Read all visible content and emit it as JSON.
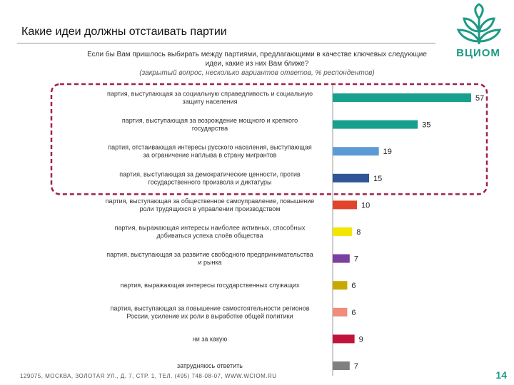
{
  "header": {
    "title": "Какие идеи должны отстаивать партии",
    "subtitle": "Если бы Вам пришлось выбирать между партиями, предлагающими в качестве ключевых следующие идеи, какие из них Вам ближе?",
    "note": "(закрытый вопрос, несколько вариантов ответов, % респондентов)"
  },
  "logo": {
    "text": "ВЦИОМ",
    "icon": "tree-logo-icon",
    "color": "#1e9a86"
  },
  "footer": {
    "address": "129075, МОСКВА, ЗОЛОТАЯ УЛ., Д. 7, СТР. 1, ТЕЛ. (495) 748-08-07, WWW.WCIOM.RU"
  },
  "page": {
    "number": "14"
  },
  "highlight": {
    "color": "#a0224a",
    "rows": 4
  },
  "chart_data": {
    "type": "bar",
    "orientation": "horizontal",
    "xlim": [
      0,
      57
    ],
    "grid": false,
    "categories": [
      "партия, выступающая за социальную справедливость и социальную защиту населения",
      "партия, выступающая за возрождение мощного и крепкого государства",
      "партия, отстаивающая интересы русского населения, выступающая за ограничение наплыва в страну мигрантов",
      "партия, выступающая за демократические ценности, против государственного произвола и диктатуры",
      "партия, выступающая за общественное самоуправление, повышение роли трудящихся в управлении производством",
      "партия, выражающая интересы наиболее активных, способных добиваться успеха слоёв общества",
      "партия, выступающая за развитие свободного предпринимательства и рынка",
      "партия, выражающая интересы государственных служащих",
      "партия, выступающая за повышение самостоятельности регионов России, усиление их роли в выработке общей политики",
      "ни за какую",
      "затрудняюсь ответить"
    ],
    "values": [
      57,
      35,
      19,
      15,
      10,
      8,
      7,
      6,
      6,
      9,
      7
    ],
    "colors": [
      "#17a08e",
      "#17a08e",
      "#5b9bd5",
      "#2f5597",
      "#e0452b",
      "#f2e600",
      "#7b3f9e",
      "#c9a800",
      "#f08c7c",
      "#c0143c",
      "#808080"
    ]
  }
}
